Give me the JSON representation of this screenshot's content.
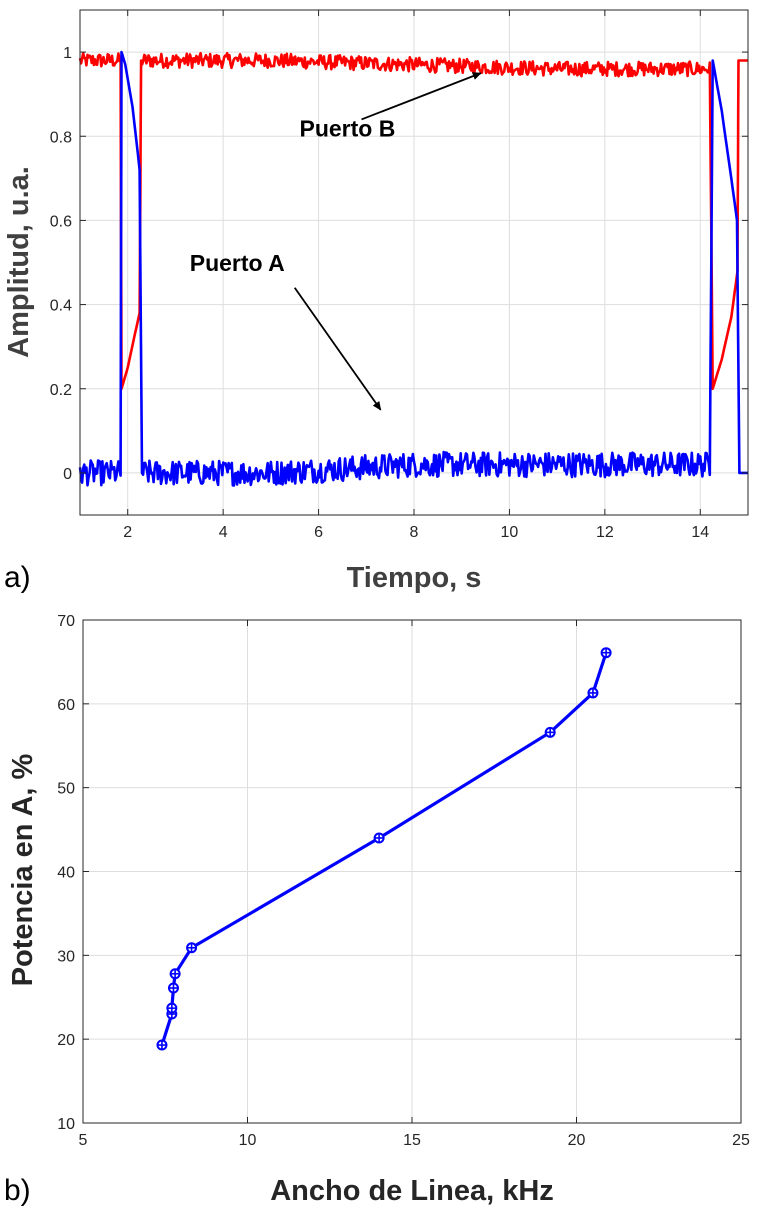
{
  "chart_data": [
    {
      "type": "line",
      "panel_label": "a)",
      "xlabel": "Tiempo, s",
      "ylabel": "Amplitud, u.a.",
      "xlim": [
        1,
        15
      ],
      "ylim": [
        -0.1,
        1.1
      ],
      "xticks": [
        2,
        4,
        6,
        8,
        10,
        12,
        14
      ],
      "yticks": [
        0,
        0.2,
        0.4,
        0.6,
        0.8,
        1
      ],
      "grid": true,
      "series": [
        {
          "name": "Puerto B",
          "color": "#ff0000",
          "points": [
            [
              1.0,
              0.98
            ],
            [
              1.85,
              0.98
            ],
            [
              1.87,
              0.2
            ],
            [
              2.0,
              0.25
            ],
            [
              2.15,
              0.33
            ],
            [
              2.25,
              0.38
            ],
            [
              2.28,
              0.98
            ],
            [
              5.0,
              0.98
            ],
            [
              8.0,
              0.97
            ],
            [
              11.0,
              0.96
            ],
            [
              14.2,
              0.96
            ],
            [
              14.26,
              0.2
            ],
            [
              14.45,
              0.27
            ],
            [
              14.65,
              0.37
            ],
            [
              14.78,
              0.48
            ],
            [
              14.8,
              0.98
            ],
            [
              15.0,
              0.98
            ]
          ]
        },
        {
          "name": "Puerto A",
          "color": "#0000ff",
          "points": [
            [
              1.0,
              0.0
            ],
            [
              1.85,
              0.0
            ],
            [
              1.87,
              1.0
            ],
            [
              1.95,
              0.97
            ],
            [
              2.1,
              0.87
            ],
            [
              2.25,
              0.72
            ],
            [
              2.3,
              0.0
            ],
            [
              5.0,
              0.0
            ],
            [
              8.0,
              0.02
            ],
            [
              11.0,
              0.02
            ],
            [
              14.2,
              0.02
            ],
            [
              14.26,
              0.98
            ],
            [
              14.45,
              0.86
            ],
            [
              14.65,
              0.7
            ],
            [
              14.77,
              0.6
            ],
            [
              14.82,
              0.0
            ],
            [
              15.0,
              0.0
            ]
          ]
        }
      ],
      "annotations": [
        {
          "text": "Puerto B",
          "at": [
            5.6,
            0.8
          ],
          "arrow_from": [
            6.9,
            0.84
          ],
          "arrow_to": [
            9.4,
            0.95
          ]
        },
        {
          "text": "Puerto A",
          "at": [
            3.3,
            0.48
          ],
          "arrow_from": [
            5.5,
            0.44
          ],
          "arrow_to": [
            7.3,
            0.15
          ]
        }
      ]
    },
    {
      "type": "line",
      "panel_label": "b)",
      "xlabel": "Ancho de Linea, kHz",
      "ylabel": "Potencia en A, %",
      "xlim": [
        5,
        25
      ],
      "ylim": [
        10,
        70
      ],
      "xticks": [
        5,
        10,
        15,
        20,
        25
      ],
      "yticks": [
        10,
        20,
        30,
        40,
        50,
        60,
        70
      ],
      "grid": true,
      "series": [
        {
          "color": "#0000ff",
          "x": [
            7.4,
            7.7,
            7.7,
            7.75,
            7.8,
            8.3,
            14.0,
            19.2,
            20.5,
            20.9
          ],
          "y": [
            19.3,
            23.0,
            23.7,
            26.1,
            27.8,
            30.9,
            44.0,
            56.6,
            61.3,
            66.1
          ]
        }
      ]
    }
  ]
}
